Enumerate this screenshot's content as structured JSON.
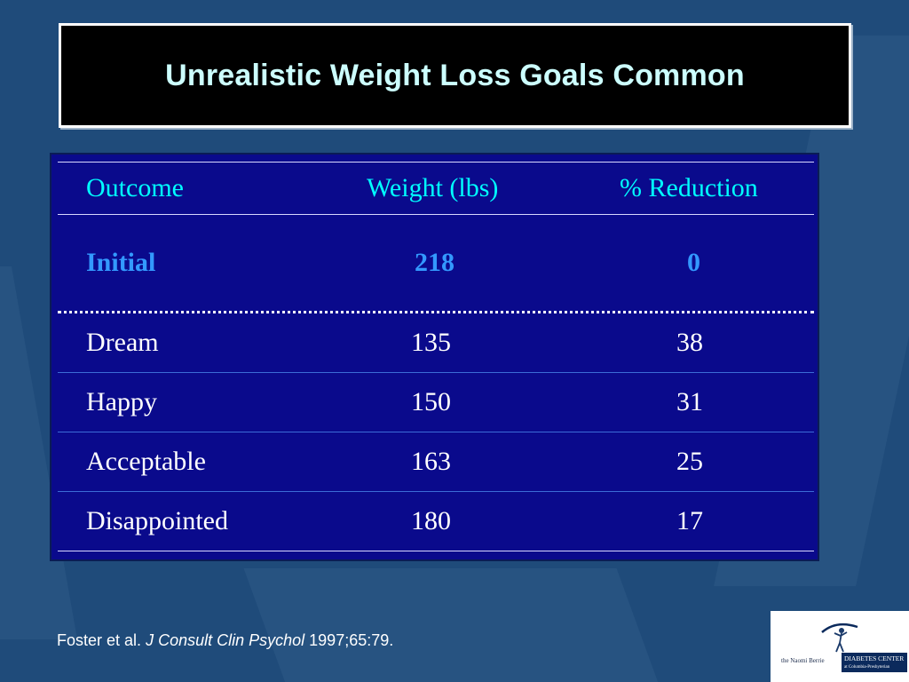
{
  "slide": {
    "title": "Unrealistic Weight Loss Goals Common"
  },
  "table": {
    "headers": [
      "Outcome",
      "Weight (lbs)",
      "% Reduction"
    ],
    "initial": {
      "outcome": "Initial",
      "weight": "218",
      "reduction": "0"
    },
    "rows": [
      {
        "outcome": "Dream",
        "weight": "135",
        "reduction": "38"
      },
      {
        "outcome": "Happy",
        "weight": "150",
        "reduction": "31"
      },
      {
        "outcome": "Acceptable",
        "weight": "163",
        "reduction": "25"
      },
      {
        "outcome": "Disappointed",
        "weight": "180",
        "reduction": "17"
      }
    ]
  },
  "citation": {
    "authors": "Foster et al.",
    "journal": "J Consult Clin Psychol",
    "ref": "1997;65:79."
  },
  "logo": {
    "prefix": "the Naomi Berrie",
    "name": "DIABETES CENTER",
    "sub": "at Columbia-Presbyterian"
  },
  "colors": {
    "background": "#1f4b7a",
    "title_text": "#ccffff",
    "table_bg": "#0a0a8c",
    "header_text": "#00ffff",
    "initial_text": "#3399ff"
  }
}
